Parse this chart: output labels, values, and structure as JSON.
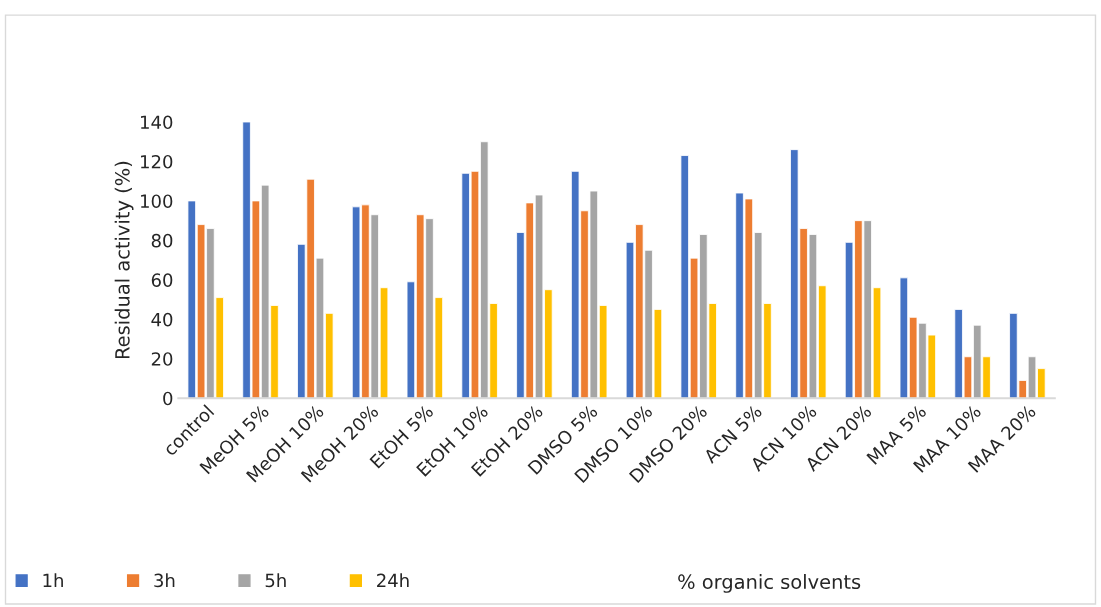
{
  "chart_data": {
    "type": "bar",
    "xlabel": "% organic solvents",
    "ylabel": "Residual activity (%)",
    "categories": [
      "control",
      "MeOH 5%",
      "MeOH 10%",
      "MeOH 20%",
      "EtOH 5%",
      "EtOH 10%",
      "EtOH 20%",
      "DMSO 5%",
      "DMSO 10%",
      "DMSO 20%",
      "ACN 5%",
      "ACN 10%",
      "ACN 20%",
      "MAA 5%",
      "MAA 10%",
      "MAA 20%"
    ],
    "series": [
      {
        "name": "1h",
        "color": "#4472c4",
        "values": [
          100,
          140,
          78,
          97,
          59,
          114,
          84,
          115,
          79,
          123,
          104,
          126,
          79,
          61,
          45,
          43
        ]
      },
      {
        "name": "3h",
        "color": "#ed7d31",
        "values": [
          88,
          100,
          111,
          98,
          93,
          115,
          99,
          95,
          88,
          71,
          101,
          86,
          90,
          41,
          21,
          9
        ]
      },
      {
        "name": "5h",
        "color": "#a5a5a5",
        "values": [
          86,
          108,
          71,
          93,
          91,
          130,
          103,
          105,
          75,
          83,
          84,
          83,
          90,
          38,
          37,
          21
        ]
      },
      {
        "name": "24h",
        "color": "#ffc000",
        "values": [
          51,
          47,
          43,
          56,
          51,
          48,
          55,
          47,
          45,
          48,
          48,
          57,
          56,
          32,
          21,
          15
        ]
      }
    ],
    "ylim": [
      0,
      140
    ],
    "yticks": [
      0,
      20,
      40,
      60,
      80,
      100,
      120,
      140
    ],
    "grid": false,
    "legend": "bottom left"
  }
}
